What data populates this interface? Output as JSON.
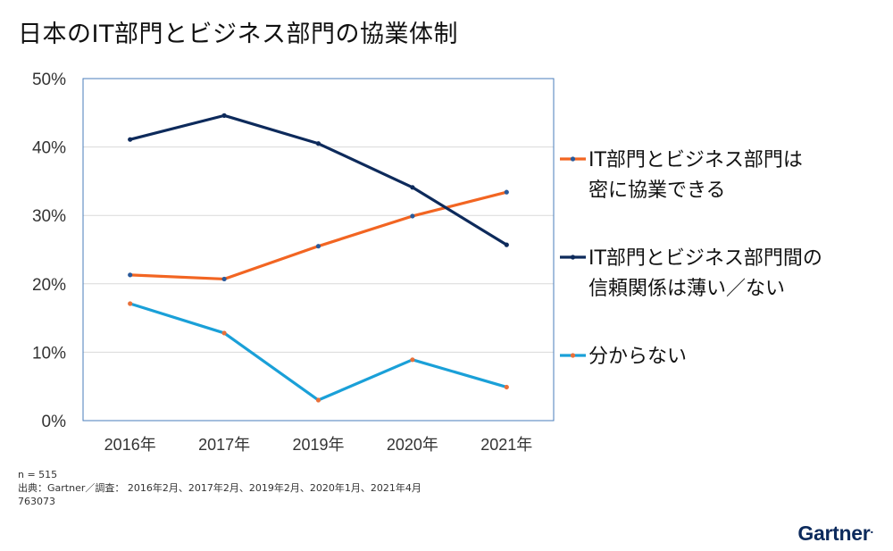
{
  "title": "日本のIT部門とビジネス部門の協業体制",
  "chart_data": {
    "type": "line",
    "categories": [
      "2016年",
      "2017年",
      "2019年",
      "2020年",
      "2021年"
    ],
    "ylim": [
      0,
      50
    ],
    "yticks": [
      "0%",
      "10%",
      "20%",
      "30%",
      "40%",
      "50%"
    ],
    "grid": true,
    "legend_position": "right",
    "series": [
      {
        "name_lines": [
          "IT部門とビジネス部門は",
          "密に協業できる"
        ],
        "color": "#f26522",
        "marker_color": "#2a5a9a",
        "values": [
          21.3,
          20.7,
          25.5,
          29.9,
          33.4
        ]
      },
      {
        "name_lines": [
          "IT部門とビジネス部門間の",
          "信頼関係は薄い／ない"
        ],
        "color": "#0d2a5b",
        "marker_color": "#0d2a5b",
        "values": [
          41.1,
          44.6,
          40.5,
          34.1,
          25.7
        ]
      },
      {
        "name_lines": [
          "分からない"
        ],
        "color": "#1aa0d8",
        "marker_color": "#e8703a",
        "values": [
          17.1,
          12.8,
          3.0,
          8.9,
          4.9
        ]
      }
    ]
  },
  "footer": {
    "n": "n = 515",
    "source": "出典：Gartner／調査： 2016年2月、2017年2月、2019年2月、2020年1月、2021年4月",
    "id": "763073"
  },
  "logo": "Gartner"
}
